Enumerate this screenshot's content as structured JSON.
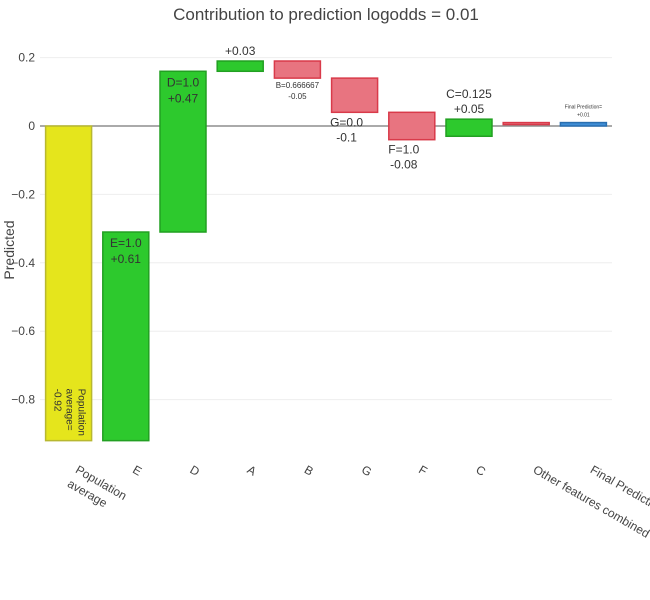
{
  "chart_data": {
    "type": "bar",
    "subtype": "waterfall",
    "title": "Contribution to prediction logodds = 0.01",
    "xlabel": "",
    "ylabel": "Predicted",
    "ylim": [
      -0.95,
      0.22
    ],
    "yticks": [
      0.2,
      0,
      -0.2,
      -0.4,
      -0.6,
      -0.8
    ],
    "ytick_labels": [
      "0.2",
      "0",
      "−0.2",
      "−0.4",
      "−0.6",
      "−0.8"
    ],
    "grid": true,
    "colors": {
      "base": "#e5e51c",
      "positive": "#2dc92d",
      "negative": "#e87480",
      "negative_border": "#d93a4a",
      "final": "#3f8ed6",
      "positive_border": "#22a022",
      "base_border": "#b8b830"
    },
    "bars": [
      {
        "category": "Population average",
        "tick": [
          "Population",
          "average"
        ],
        "kind": "base",
        "start": 0,
        "end": -0.92,
        "label": [
          "Population",
          "average=",
          "-0.92"
        ],
        "label_style": "vertical"
      },
      {
        "category": "E",
        "tick": [
          "E"
        ],
        "kind": "positive",
        "start": -0.92,
        "end": -0.31,
        "label": [
          "E=1.0",
          "+0.61"
        ],
        "label_style": "inside-top"
      },
      {
        "category": "D",
        "tick": [
          "D"
        ],
        "kind": "positive",
        "start": -0.31,
        "end": 0.16,
        "label": [
          "D=1.0",
          "+0.47"
        ],
        "label_style": "inside-top"
      },
      {
        "category": "A",
        "tick": [
          "A"
        ],
        "kind": "positive",
        "start": 0.16,
        "end": 0.19,
        "label": [
          "+0.03"
        ],
        "label_style": "above"
      },
      {
        "category": "B",
        "tick": [
          "B"
        ],
        "kind": "negative",
        "start": 0.19,
        "end": 0.14,
        "label": [
          "B=0.666667",
          "-0.05"
        ],
        "label_style": "below-small"
      },
      {
        "category": "G",
        "tick": [
          "G"
        ],
        "kind": "negative",
        "start": 0.14,
        "end": 0.04,
        "label": [
          "G=0.0",
          "-0.1"
        ],
        "label_style": "below"
      },
      {
        "category": "F",
        "tick": [
          "F"
        ],
        "kind": "negative",
        "start": 0.04,
        "end": -0.04,
        "label": [
          "F=1.0",
          "-0.08"
        ],
        "label_style": "below"
      },
      {
        "category": "C",
        "tick": [
          "C"
        ],
        "kind": "positive",
        "start": -0.03,
        "end": 0.02,
        "label": [
          "C=0.125",
          "+0.05"
        ],
        "label_style": "above"
      },
      {
        "category": "Other features combined",
        "tick": [
          "Other features combined"
        ],
        "kind": "negative",
        "start": 0.01,
        "end": 0.005,
        "label": [],
        "label_style": "none"
      },
      {
        "category": "Final Prediction",
        "tick": [
          "Final Prediction"
        ],
        "kind": "final",
        "start": 0,
        "end": 0.01,
        "label": [
          "Final Prediction=",
          "+0.01"
        ],
        "label_style": "above-tiny"
      }
    ]
  }
}
